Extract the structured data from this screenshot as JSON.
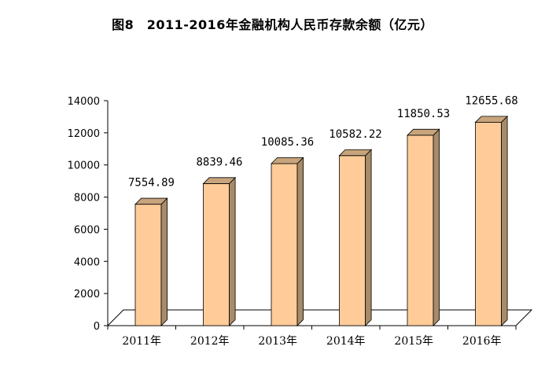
{
  "chart_data": {
    "type": "bar",
    "title": "图8　2011-2016年金融机构人民币存款余额（亿元）",
    "categories": [
      "2011年",
      "2012年",
      "2013年",
      "2014年",
      "2015年",
      "2016年"
    ],
    "values": [
      7554.89,
      8839.46,
      10085.36,
      10582.22,
      11850.53,
      12655.68
    ],
    "data_labels": [
      "7554.89",
      "8839.46",
      "10085.36",
      "10582.22",
      "11850.53",
      "12655.68"
    ],
    "yticks": [
      "0",
      "2000",
      "4000",
      "6000",
      "8000",
      "10000",
      "12000",
      "14000"
    ],
    "ylim": [
      0,
      14000
    ],
    "grid": false,
    "legend": "none",
    "colors": {
      "bar_front": "#FFCC99",
      "bar_side": "#A88B68",
      "bar_top": "#C7A47C",
      "bar_edge": "#000000",
      "axis": "#000000"
    }
  }
}
